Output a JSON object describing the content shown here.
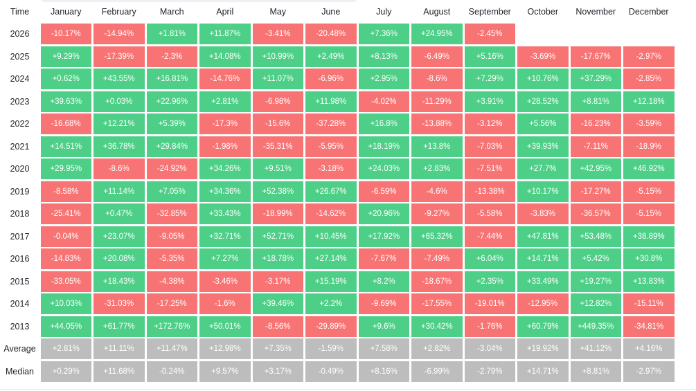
{
  "table": {
    "corner_label": "Time",
    "columns": [
      "January",
      "February",
      "March",
      "April",
      "May",
      "June",
      "July",
      "August",
      "September",
      "October",
      "November",
      "December"
    ],
    "rows": [
      {
        "label": "2026",
        "values": [
          "-10.17%",
          "-14.94%",
          "+1.81%",
          "+11.87%",
          "-3.41%",
          "-20.48%",
          "+7.36%",
          "+24.95%",
          "-2.45%",
          "",
          "",
          ""
        ]
      },
      {
        "label": "2025",
        "values": [
          "+9.29%",
          "-17.39%",
          "-2.3%",
          "+14.08%",
          "+10.99%",
          "+2.49%",
          "+8.13%",
          "-6.49%",
          "+5.16%",
          "-3.69%",
          "-17.67%",
          "-2.97%"
        ]
      },
      {
        "label": "2024",
        "values": [
          "+0.62%",
          "+43.55%",
          "+16.81%",
          "-14.76%",
          "+11.07%",
          "-6.96%",
          "+2.95%",
          "-8.6%",
          "+7.29%",
          "+10.76%",
          "+37.29%",
          "-2.85%"
        ]
      },
      {
        "label": "2023",
        "values": [
          "+39.63%",
          "+0.03%",
          "+22.96%",
          "+2.81%",
          "-6.98%",
          "+11.98%",
          "-4.02%",
          "-11.29%",
          "+3.91%",
          "+28.52%",
          "+8.81%",
          "+12.18%"
        ]
      },
      {
        "label": "2022",
        "values": [
          "-16.68%",
          "+12.21%",
          "+5.39%",
          "-17.3%",
          "-15.6%",
          "-37.28%",
          "+16.8%",
          "-13.88%",
          "-3.12%",
          "+5.56%",
          "-16.23%",
          "-3.59%"
        ]
      },
      {
        "label": "2021",
        "values": [
          "+14.51%",
          "+36.78%",
          "+29.84%",
          "-1.98%",
          "-35.31%",
          "-5.95%",
          "+18.19%",
          "+13.8%",
          "-7.03%",
          "+39.93%",
          "-7.11%",
          "-18.9%"
        ]
      },
      {
        "label": "2020",
        "values": [
          "+29.95%",
          "-8.6%",
          "-24.92%",
          "+34.26%",
          "+9.51%",
          "-3.18%",
          "+24.03%",
          "+2.83%",
          "-7.51%",
          "+27.7%",
          "+42.95%",
          "+46.92%"
        ]
      },
      {
        "label": "2019",
        "values": [
          "-8.58%",
          "+11.14%",
          "+7.05%",
          "+34.36%",
          "+52.38%",
          "+26.67%",
          "-6.59%",
          "-4.6%",
          "-13.38%",
          "+10.17%",
          "-17.27%",
          "-5.15%"
        ]
      },
      {
        "label": "2018",
        "values": [
          "-25.41%",
          "+0.47%",
          "-32.85%",
          "+33.43%",
          "-18.99%",
          "-14.62%",
          "+20.96%",
          "-9.27%",
          "-5.58%",
          "-3.83%",
          "-36.57%",
          "-5.15%"
        ]
      },
      {
        "label": "2017",
        "values": [
          "-0.04%",
          "+23.07%",
          "-9.05%",
          "+32.71%",
          "+52.71%",
          "+10.45%",
          "+17.92%",
          "+65.32%",
          "-7.44%",
          "+47.81%",
          "+53.48%",
          "+38.89%"
        ]
      },
      {
        "label": "2016",
        "values": [
          "-14.83%",
          "+20.08%",
          "-5.35%",
          "+7.27%",
          "+18.78%",
          "+27.14%",
          "-7.67%",
          "-7.49%",
          "+6.04%",
          "+14.71%",
          "+5.42%",
          "+30.8%"
        ]
      },
      {
        "label": "2015",
        "values": [
          "-33.05%",
          "+18.43%",
          "-4.38%",
          "-3.46%",
          "-3.17%",
          "+15.19%",
          "+8.2%",
          "-18.67%",
          "+2.35%",
          "+33.49%",
          "+19.27%",
          "+13.83%"
        ]
      },
      {
        "label": "2014",
        "values": [
          "+10.03%",
          "-31.03%",
          "-17.25%",
          "-1.6%",
          "+39.46%",
          "+2.2%",
          "-9.69%",
          "-17.55%",
          "-19.01%",
          "-12.95%",
          "+12.82%",
          "-15.11%"
        ]
      },
      {
        "label": "2013",
        "values": [
          "+44.05%",
          "+61.77%",
          "+172.76%",
          "+50.01%",
          "-8.56%",
          "-29.89%",
          "+9.6%",
          "+30.42%",
          "-1.76%",
          "+60.79%",
          "+449.35%",
          "-34.81%"
        ]
      }
    ],
    "summary_rows": [
      {
        "label": "Average",
        "values": [
          "+2.81%",
          "+11.11%",
          "+11.47%",
          "+12.98%",
          "+7.35%",
          "-1.59%",
          "+7.58%",
          "+2.82%",
          "-3.04%",
          "+19.92%",
          "+41.12%",
          "+4.16%"
        ]
      },
      {
        "label": "Median",
        "values": [
          "+0.29%",
          "+11.68%",
          "-0.24%",
          "+9.57%",
          "+3.17%",
          "-0.49%",
          "+8.16%",
          "-6.99%",
          "-2.79%",
          "+14.71%",
          "+8.81%",
          "-2.97%"
        ]
      }
    ]
  },
  "colors": {
    "positive": "#4ecf87",
    "negative": "#f87474",
    "summary": "#bdbdbd",
    "text_dark": "#1e2329",
    "text_light": "#ffffff"
  },
  "chart_data": {
    "type": "heatmap",
    "x_label": "",
    "y_label": "Time",
    "categories": [
      "January",
      "February",
      "March",
      "April",
      "May",
      "June",
      "July",
      "August",
      "September",
      "October",
      "November",
      "December"
    ],
    "series": [
      {
        "name": "2026",
        "values": [
          -10.17,
          -14.94,
          1.81,
          11.87,
          -3.41,
          -20.48,
          7.36,
          24.95,
          -2.45,
          null,
          null,
          null
        ]
      },
      {
        "name": "2025",
        "values": [
          9.29,
          -17.39,
          -2.3,
          14.08,
          10.99,
          2.49,
          8.13,
          -6.49,
          5.16,
          -3.69,
          -17.67,
          -2.97
        ]
      },
      {
        "name": "2024",
        "values": [
          0.62,
          43.55,
          16.81,
          -14.76,
          11.07,
          -6.96,
          2.95,
          -8.6,
          7.29,
          10.76,
          37.29,
          -2.85
        ]
      },
      {
        "name": "2023",
        "values": [
          39.63,
          0.03,
          22.96,
          2.81,
          -6.98,
          11.98,
          -4.02,
          -11.29,
          3.91,
          28.52,
          8.81,
          12.18
        ]
      },
      {
        "name": "2022",
        "values": [
          -16.68,
          12.21,
          5.39,
          -17.3,
          -15.6,
          -37.28,
          16.8,
          -13.88,
          -3.12,
          5.56,
          -16.23,
          -3.59
        ]
      },
      {
        "name": "2021",
        "values": [
          14.51,
          36.78,
          29.84,
          -1.98,
          -35.31,
          -5.95,
          18.19,
          13.8,
          -7.03,
          39.93,
          -7.11,
          -18.9
        ]
      },
      {
        "name": "2020",
        "values": [
          29.95,
          -8.6,
          -24.92,
          34.26,
          9.51,
          -3.18,
          24.03,
          2.83,
          -7.51,
          27.7,
          42.95,
          46.92
        ]
      },
      {
        "name": "2019",
        "values": [
          -8.58,
          11.14,
          7.05,
          34.36,
          52.38,
          26.67,
          -6.59,
          -4.6,
          -13.38,
          10.17,
          -17.27,
          -5.15
        ]
      },
      {
        "name": "2018",
        "values": [
          -25.41,
          0.47,
          -32.85,
          33.43,
          -18.99,
          -14.62,
          20.96,
          -9.27,
          -5.58,
          -3.83,
          -36.57,
          -5.15
        ]
      },
      {
        "name": "2017",
        "values": [
          -0.04,
          23.07,
          -9.05,
          32.71,
          52.71,
          10.45,
          17.92,
          65.32,
          -7.44,
          47.81,
          53.48,
          38.89
        ]
      },
      {
        "name": "2016",
        "values": [
          -14.83,
          20.08,
          -5.35,
          7.27,
          18.78,
          27.14,
          -7.67,
          -7.49,
          6.04,
          14.71,
          5.42,
          30.8
        ]
      },
      {
        "name": "2015",
        "values": [
          -33.05,
          18.43,
          -4.38,
          -3.46,
          -3.17,
          15.19,
          8.2,
          -18.67,
          2.35,
          33.49,
          19.27,
          13.83
        ]
      },
      {
        "name": "2014",
        "values": [
          10.03,
          -31.03,
          -17.25,
          -1.6,
          39.46,
          2.2,
          -9.69,
          -17.55,
          -19.01,
          -12.95,
          12.82,
          -15.11
        ]
      },
      {
        "name": "2013",
        "values": [
          44.05,
          61.77,
          172.76,
          50.01,
          -8.56,
          -29.89,
          9.6,
          30.42,
          -1.76,
          60.79,
          449.35,
          -34.81
        ]
      },
      {
        "name": "Average",
        "values": [
          2.81,
          11.11,
          11.47,
          12.98,
          7.35,
          -1.59,
          7.58,
          2.82,
          -3.04,
          19.92,
          41.12,
          4.16
        ]
      },
      {
        "name": "Median",
        "values": [
          0.29,
          11.68,
          -0.24,
          9.57,
          3.17,
          -0.49,
          8.16,
          -6.99,
          -2.79,
          14.71,
          8.81,
          -2.97
        ]
      }
    ],
    "units": "%",
    "color_scale": {
      "positive": "#4ecf87",
      "negative": "#f87474",
      "summary": "#bdbdbd"
    }
  }
}
